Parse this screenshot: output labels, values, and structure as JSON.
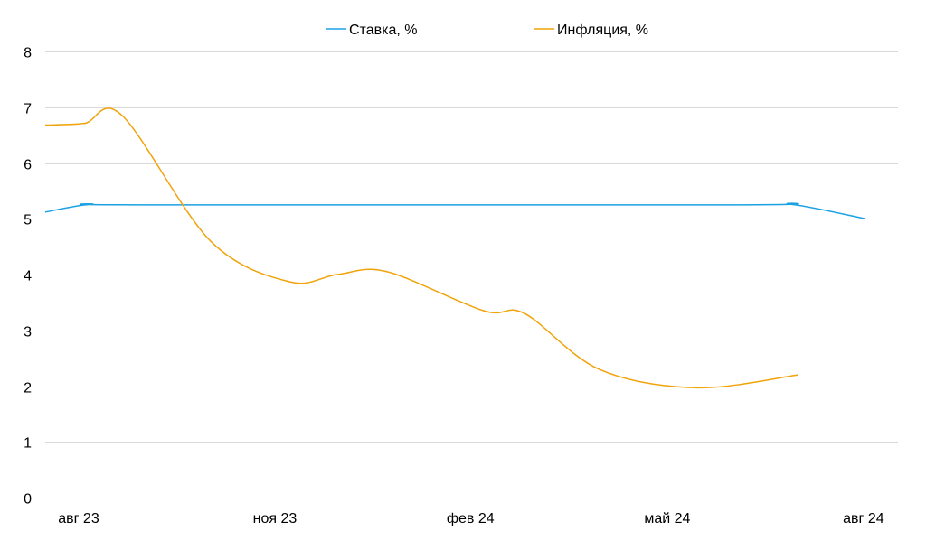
{
  "chart_data": {
    "type": "line",
    "title": "",
    "xlabel": "",
    "ylabel": "",
    "ylim": [
      0,
      8
    ],
    "yticks": [
      0,
      1,
      2,
      3,
      4,
      5,
      6,
      7,
      8
    ],
    "xlim_months": [
      0,
      13
    ],
    "xticks": [
      {
        "label": "авг 23",
        "month": 0.53
      },
      {
        "label": "ноя 23",
        "month": 3.64
      },
      {
        "label": "фев 24",
        "month": 6.74
      },
      {
        "label": "май 24",
        "month": 9.86
      },
      {
        "label": "авг 24",
        "month": 12.97
      }
    ],
    "grid": true,
    "legend_position": "top",
    "smooth": true,
    "series": [
      {
        "name": "Ставка, %",
        "color": "#1ba1e2",
        "x": [
          0,
          0.72,
          1.5,
          11.0,
          11.82,
          13.0
        ],
        "y": [
          5.12,
          5.26,
          5.25,
          5.25,
          5.26,
          5.0
        ]
      },
      {
        "name": "Инфляция, %",
        "color": "#f0a30a",
        "x": [
          0,
          0.62,
          1.22,
          2.62,
          3.87,
          4.63,
          5.42,
          6.95,
          7.6,
          8.78,
          10.32,
          11.93
        ],
        "y": [
          6.68,
          6.71,
          6.85,
          4.6,
          3.87,
          4.0,
          4.05,
          3.35,
          3.3,
          2.3,
          1.97,
          2.2
        ]
      }
    ]
  }
}
